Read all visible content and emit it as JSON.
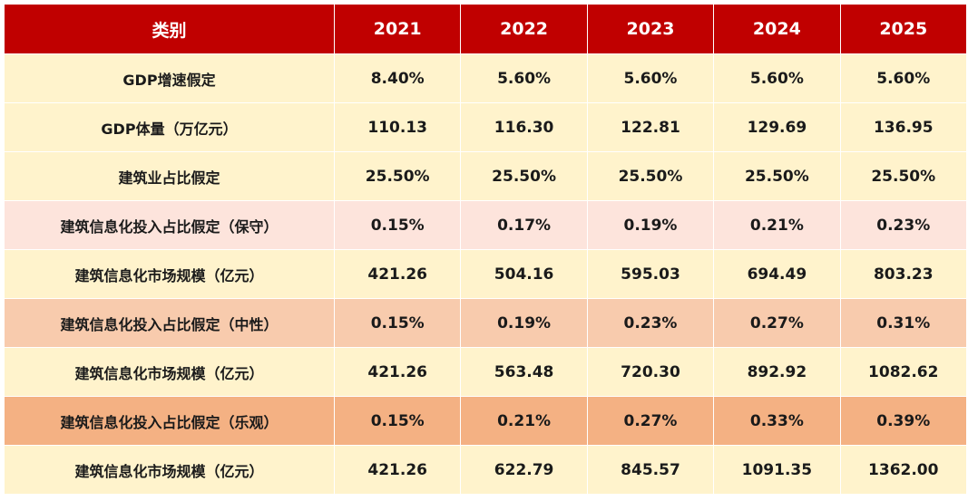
{
  "header": [
    "类别",
    "2021",
    "2022",
    "2023",
    "2024",
    "2025"
  ],
  "rows": [
    {
      "label": "GDP增速假定",
      "values": [
        "8.40%",
        "5.60%",
        "5.60%",
        "5.60%",
        "5.60%"
      ],
      "style": "plain"
    },
    {
      "label": "GDP体量（万亿元）",
      "values": [
        "110.13",
        "116.30",
        "122.81",
        "129.69",
        "136.95"
      ],
      "style": "plain"
    },
    {
      "label": "建筑业占比假定",
      "values": [
        "25.50%",
        "25.50%",
        "25.50%",
        "25.50%",
        "25.50%"
      ],
      "style": "plain"
    },
    {
      "label": "建筑信息化投入占比假定（保守）",
      "values": [
        "0.15%",
        "0.17%",
        "0.19%",
        "0.21%",
        "0.23%"
      ],
      "style": "cons"
    },
    {
      "label": "建筑信息化市场规模（亿元）",
      "values": [
        "421.26",
        "504.16",
        "595.03",
        "694.49",
        "803.23"
      ],
      "style": "plain"
    },
    {
      "label": "建筑信息化投入占比假定（中性）",
      "values": [
        "0.15%",
        "0.19%",
        "0.23%",
        "0.27%",
        "0.31%"
      ],
      "style": "neu"
    },
    {
      "label": "建筑信息化市场规模（亿元）",
      "values": [
        "421.26",
        "563.48",
        "720.30",
        "892.92",
        "1082.62"
      ],
      "style": "plain"
    },
    {
      "label": "建筑信息化投入占比假定（乐观）",
      "values": [
        "0.15%",
        "0.21%",
        "0.27%",
        "0.33%",
        "0.39%"
      ],
      "style": "opt"
    },
    {
      "label": "建筑信息化市场规模（亿元）",
      "values": [
        "421.26",
        "622.79",
        "845.57",
        "1091.35",
        "1362.00"
      ],
      "style": "plain"
    }
  ],
  "colors": {
    "header_bg": "#c00000",
    "row_plain": "#fff3cc",
    "row_conservative": "#fde4dc",
    "row_neutral": "#f8cbad",
    "row_optimistic": "#f4b183"
  }
}
